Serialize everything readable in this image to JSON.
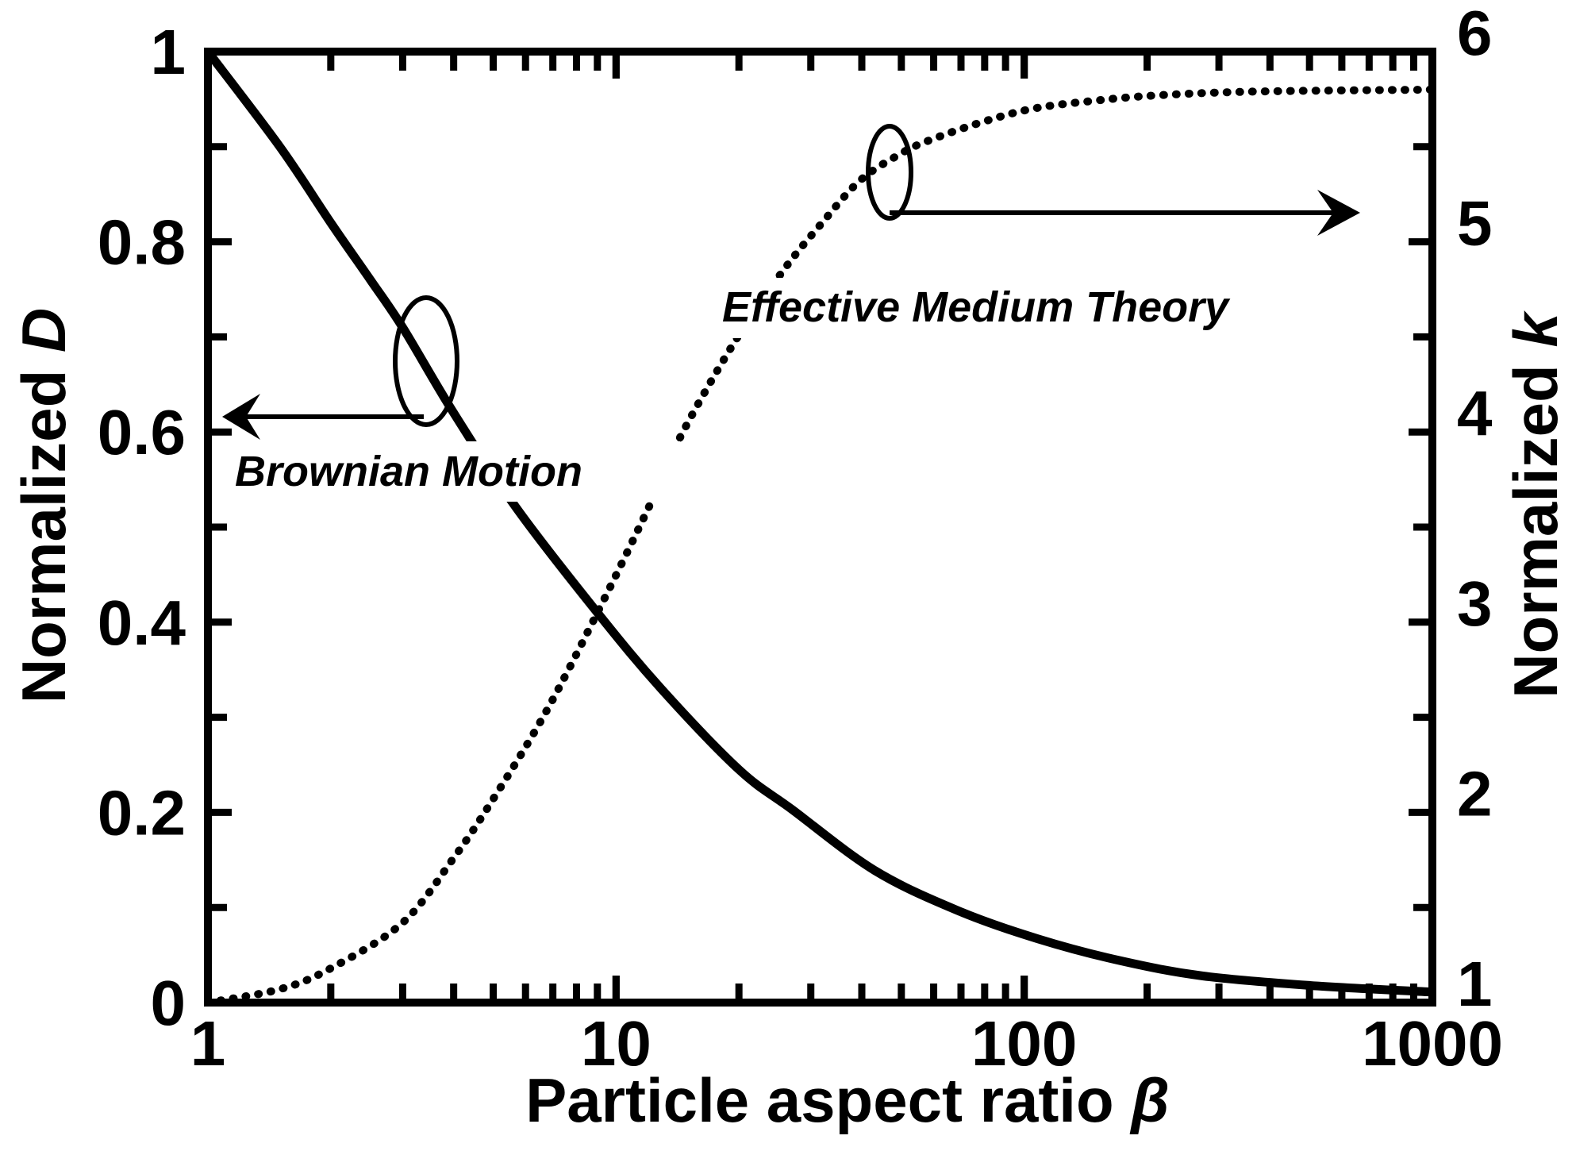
{
  "chart_data": {
    "type": "line",
    "title": "",
    "xlabel": "Particle aspect ratio β",
    "xlabel_text": "Particle aspect ratio ",
    "xlabel_symbol": "β",
    "xscale": "log",
    "xlim": [
      1,
      1000
    ],
    "xticks": [
      1,
      10,
      100,
      1000
    ],
    "xtick_labels": [
      "1",
      "10",
      "100",
      "1000"
    ],
    "ylabel_left": "Normalized D",
    "ylabel_left_text": "Normalized ",
    "ylabel_left_symbol": "D",
    "ylim_left": [
      0,
      1
    ],
    "yticks_left": [
      0,
      0.2,
      0.4,
      0.6,
      0.8,
      1
    ],
    "ytick_labels_left": [
      "0",
      "0.2",
      "0.4",
      "0.6",
      "0.8",
      "1"
    ],
    "ylabel_right": "Normalized k",
    "ylabel_right_text": "Normalized ",
    "ylabel_right_symbol": "k",
    "ylim_right": [
      1,
      6
    ],
    "yticks_right": [
      1,
      2,
      3,
      4,
      5,
      6
    ],
    "ytick_labels_right": [
      "1",
      "2",
      "3",
      "4",
      "5",
      "6"
    ],
    "grid": false,
    "legend": "none (inline annotations)",
    "series": [
      {
        "name": "Brownian Motion",
        "axis": "left",
        "style": "solid",
        "color": "#000000",
        "x": [
          1,
          1.5,
          2,
          2.5,
          3,
          4,
          5.7,
          9,
          12.9,
          20,
          27,
          43,
          68.5,
          108,
          172,
          274,
          500,
          1000
        ],
        "y": [
          1.0,
          0.9,
          0.82,
          0.76,
          0.71,
          0.62,
          0.52,
          0.41,
          0.33,
          0.245,
          0.203,
          0.139,
          0.097,
          0.067,
          0.044,
          0.028,
          0.018,
          0.011
        ]
      },
      {
        "name": "Effective Medium Theory",
        "axis": "right",
        "style": "dotted",
        "color": "#000000",
        "x": [
          1,
          1.5,
          2,
          3,
          4,
          5,
          6.7,
          9,
          12,
          14.5,
          19.6,
          25.7,
          31.7,
          39.5,
          49.5,
          58,
          79,
          105,
          146,
          212,
          370,
          1000
        ],
        "y": [
          1.0,
          1.07,
          1.18,
          1.42,
          1.76,
          2.07,
          2.52,
          3.05,
          3.6,
          3.99,
          4.48,
          4.85,
          5.09,
          5.32,
          5.46,
          5.53,
          5.63,
          5.7,
          5.74,
          5.77,
          5.79,
          5.8
        ]
      }
    ],
    "annotations": [
      {
        "text": "Brownian Motion",
        "points_to": "left axis",
        "ellipse_at_beta": 3.3,
        "ellipse_at_D": 0.68
      },
      {
        "text": "Effective Medium Theory",
        "points_to": "right axis",
        "ellipse_at_beta": 48,
        "ellipse_at_k": 5.4
      }
    ]
  }
}
